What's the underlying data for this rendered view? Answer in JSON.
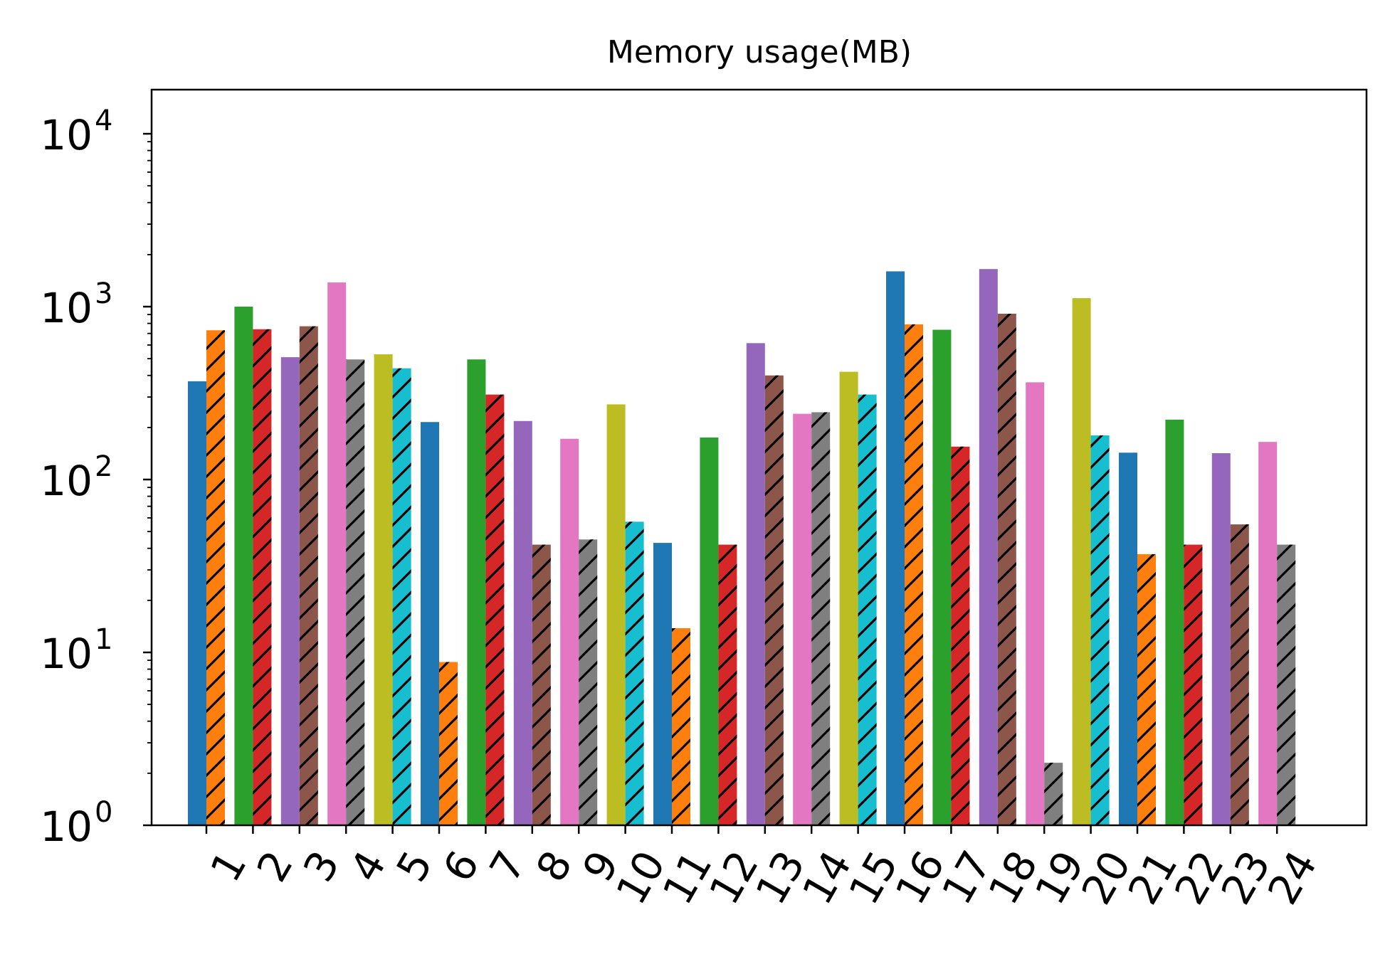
{
  "chart_data": {
    "type": "bar",
    "title": "Memory usage(MB)",
    "xlabel": "",
    "ylabel": "",
    "yscale": "log",
    "ylim": [
      1,
      18000
    ],
    "yticks": [
      {
        "value": 1,
        "base": "10",
        "exp": "0"
      },
      {
        "value": 10,
        "base": "10",
        "exp": "1"
      },
      {
        "value": 100,
        "base": "10",
        "exp": "2"
      },
      {
        "value": 1000,
        "base": "10",
        "exp": "3"
      },
      {
        "value": 10000,
        "base": "10",
        "exp": "4"
      }
    ],
    "categories": [
      "1",
      "2",
      "3",
      "4",
      "5",
      "6",
      "7",
      "8",
      "9",
      "10",
      "11",
      "12",
      "13",
      "14",
      "15",
      "16",
      "17",
      "18",
      "19",
      "20",
      "21",
      "22",
      "23",
      "24"
    ],
    "grid": false,
    "legend": "none",
    "bar_order": [
      "solid",
      "hatched"
    ],
    "hatch_style": "diagonal",
    "series": [
      {
        "values": [
          370,
          1000,
          510,
          1380,
          530,
          215,
          495,
          218,
          172,
          272,
          43,
          175,
          615,
          240,
          420,
          1600,
          735,
          1650,
          365,
          1120,
          143,
          222,
          142,
          165
        ],
        "colors": [
          "#1f77b4",
          "#2ca02c",
          "#9467bd",
          "#e377c2",
          "#bcbd22",
          "#1f77b4",
          "#2ca02c",
          "#9467bd",
          "#e377c2",
          "#bcbd22",
          "#1f77b4",
          "#2ca02c",
          "#9467bd",
          "#e377c2",
          "#bcbd22",
          "#1f77b4",
          "#2ca02c",
          "#9467bd",
          "#e377c2",
          "#bcbd22",
          "#1f77b4",
          "#2ca02c",
          "#9467bd",
          "#e377c2"
        ]
      },
      {
        "values": [
          730,
          740,
          770,
          495,
          440,
          8.8,
          310,
          42,
          45,
          57,
          13.8,
          42,
          400,
          245,
          310,
          790,
          155,
          910,
          2.3,
          180,
          37,
          42,
          55,
          42
        ],
        "colors": [
          "#ff7f0e",
          "#d62728",
          "#8c564b",
          "#7f7f7f",
          "#17becf",
          "#ff7f0e",
          "#d62728",
          "#8c564b",
          "#7f7f7f",
          "#17becf",
          "#ff7f0e",
          "#d62728",
          "#8c564b",
          "#7f7f7f",
          "#17becf",
          "#ff7f0e",
          "#d62728",
          "#8c564b",
          "#7f7f7f",
          "#17becf",
          "#ff7f0e",
          "#d62728",
          "#8c564b",
          "#7f7f7f"
        ]
      }
    ]
  }
}
